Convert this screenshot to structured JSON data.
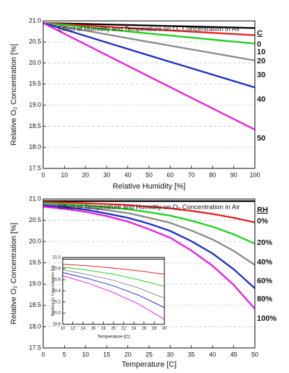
{
  "chart_data": [
    {
      "type": "line",
      "title": "Effect of Humidity and Temperature on O₂ Concentration in Air",
      "x_label": "Relative Humidity [%]",
      "y_label": "Relative O₂ Concentration [%]",
      "legend_title": "C",
      "x": [
        0,
        50,
        100
      ],
      "xlim": [
        0,
        100
      ],
      "xticks": [
        0,
        10,
        20,
        30,
        40,
        50,
        60,
        70,
        80,
        90,
        100
      ],
      "ylim": [
        17.5,
        21.0
      ],
      "yticks": [
        17.5,
        {
          "value": 18,
          "label": "18.0"
        },
        18.5,
        {
          "value": 19,
          "label": "19.0"
        },
        19.5,
        {
          "value": 20,
          "label": "20.0"
        },
        20.5,
        {
          "value": 21,
          "label": "21.0"
        }
      ],
      "grid": true,
      "series": [
        {
          "name": "0",
          "color": "#000000",
          "values": [
            20.95,
            20.89,
            20.83
          ]
        },
        {
          "name": "10",
          "color": "#e8201c",
          "values": [
            20.95,
            20.8,
            20.66
          ]
        },
        {
          "name": "20",
          "color": "#1fd11f",
          "values": [
            20.95,
            20.7,
            20.46
          ]
        },
        {
          "name": "30",
          "color": "#8a8a8a",
          "values": [
            20.95,
            20.5,
            20.06
          ]
        },
        {
          "name": "40",
          "color": "#1c2fc4",
          "values": [
            20.95,
            20.18,
            19.42
          ]
        },
        {
          "name": "50",
          "color": "#e81ce0",
          "values": [
            20.95,
            19.68,
            18.42
          ]
        }
      ]
    },
    {
      "type": "line",
      "title": "Effect of Temperature and Humidity on O₂ Concentration in Air",
      "x_label": "Temperature [C]",
      "y_label": "Relative O₂ Concentration [%]",
      "legend_title": "RH",
      "x": [
        0,
        5,
        10,
        15,
        20,
        25,
        30,
        35,
        40,
        45,
        50
      ],
      "xlim": [
        0,
        50
      ],
      "xticks": [
        0,
        5,
        10,
        15,
        20,
        25,
        30,
        35,
        40,
        45,
        50
      ],
      "ylim": [
        17.5,
        21.0
      ],
      "yticks": [
        17.5,
        {
          "value": 18,
          "label": "18.0"
        },
        18.5,
        {
          "value": 19,
          "label": "19.0"
        },
        19.5,
        {
          "value": 20,
          "label": "20.0"
        },
        20.5,
        {
          "value": 21,
          "label": "21.0"
        }
      ],
      "grid": true,
      "series": [
        {
          "name": "0%",
          "color": "#000000",
          "values": [
            20.95,
            20.95,
            20.95,
            20.95,
            20.95,
            20.95,
            20.95,
            20.95,
            20.95,
            20.95,
            20.95
          ]
        },
        {
          "name": "20%",
          "color": "#e8201c",
          "values": [
            20.93,
            20.92,
            20.9,
            20.88,
            20.86,
            20.82,
            20.78,
            20.72,
            20.65,
            20.56,
            20.45
          ]
        },
        {
          "name": "40%",
          "color": "#1fd11f",
          "values": [
            20.9,
            20.88,
            20.85,
            20.81,
            20.76,
            20.69,
            20.61,
            20.49,
            20.35,
            20.17,
            19.95
          ]
        },
        {
          "name": "60%",
          "color": "#8a8a8a",
          "values": [
            20.88,
            20.85,
            20.8,
            20.74,
            20.67,
            20.56,
            20.44,
            20.26,
            20.05,
            19.78,
            19.45
          ]
        },
        {
          "name": "80%",
          "color": "#1c2fc4",
          "values": [
            20.85,
            20.81,
            20.75,
            20.66,
            20.56,
            20.42,
            20.25,
            20.01,
            19.72,
            19.35,
            18.9
          ]
        },
        {
          "name": "100%",
          "color": "#e81ce0",
          "values": [
            20.82,
            20.77,
            20.7,
            20.6,
            20.47,
            20.29,
            20.09,
            19.79,
            19.43,
            18.98,
            18.42
          ]
        }
      ]
    },
    {
      "type": "line",
      "x_label": "Temperature [C]",
      "y_label": "Relative O₂ Concentration [%]",
      "x": [
        10,
        15,
        20,
        25,
        30
      ],
      "xlim": [
        10,
        30
      ],
      "xticks": [
        10,
        12,
        14,
        16,
        18,
        20,
        22,
        24,
        26,
        28,
        30
      ],
      "ylim": [
        19.8,
        21.0
      ],
      "yticks": [
        19.8,
        {
          "value": 20,
          "label": "20.0"
        },
        20.2,
        20.4,
        20.6,
        20.8,
        {
          "value": 21,
          "label": "21.0"
        }
      ],
      "grid": false,
      "series": [
        {
          "color": "#000000",
          "values": [
            20.97,
            20.97,
            20.97,
            20.97,
            20.97
          ]
        },
        {
          "color": "#e8201c",
          "values": [
            20.88,
            20.85,
            20.81,
            20.76,
            20.7
          ]
        },
        {
          "color": "#1fd11f",
          "values": [
            20.83,
            20.77,
            20.7,
            20.6,
            20.48
          ]
        },
        {
          "color": "#8a8a8a",
          "values": [
            20.78,
            20.69,
            20.59,
            20.45,
            20.27
          ]
        },
        {
          "color": "#1c2fc4",
          "values": [
            20.73,
            20.62,
            20.49,
            20.32,
            20.1
          ]
        },
        {
          "color": "#e81ce0",
          "values": [
            20.67,
            20.54,
            20.37,
            20.16,
            19.89
          ]
        }
      ]
    }
  ]
}
